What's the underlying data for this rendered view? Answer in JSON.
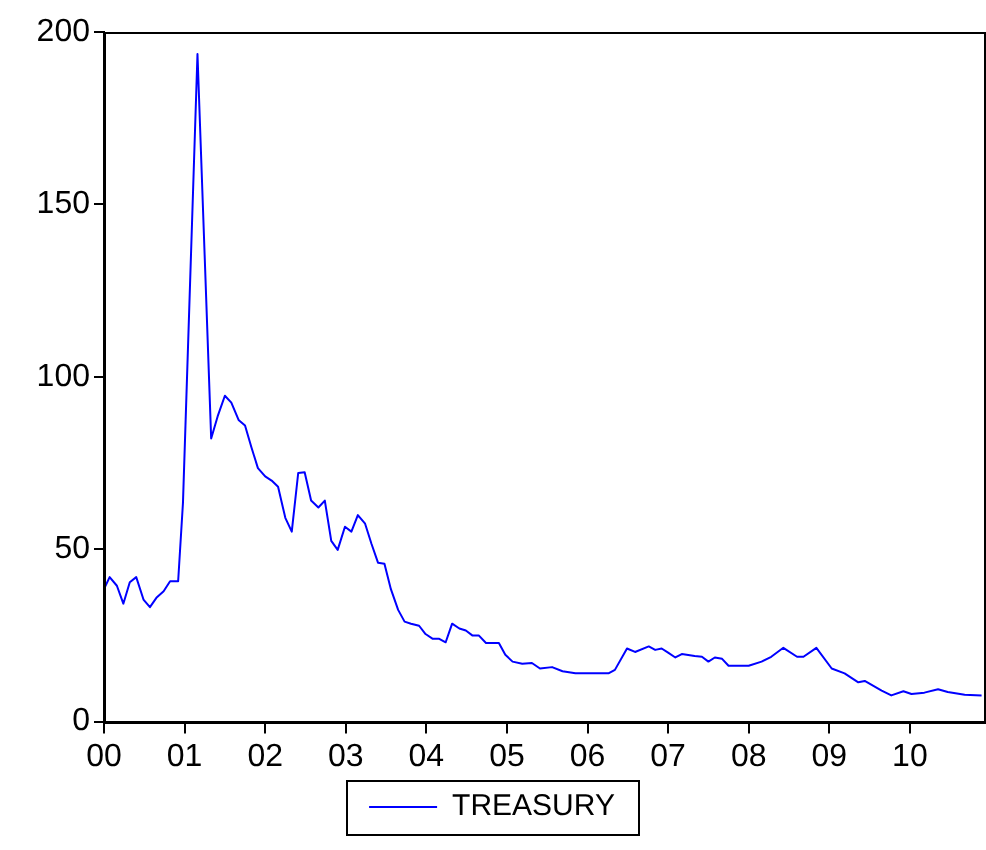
{
  "chart_data": {
    "type": "line",
    "legend": "bottom",
    "grid": false,
    "marker": "none",
    "line_style": "solid",
    "x": [
      2000.0,
      2000.07,
      2000.16,
      2000.24,
      2000.32,
      2000.4,
      2000.49,
      2000.57,
      2000.65,
      2000.74,
      2000.82,
      2000.92,
      2000.98,
      2001.16,
      2001.33,
      2001.41,
      2001.5,
      2001.58,
      2001.67,
      2001.75,
      2001.83,
      2001.91,
      2002.0,
      2002.08,
      2002.16,
      2002.25,
      2002.33,
      2002.41,
      2002.49,
      2002.57,
      2002.66,
      2002.74,
      2002.82,
      2002.9,
      2002.99,
      2003.07,
      2003.15,
      2003.24,
      2003.32,
      2003.4,
      2003.48,
      2003.56,
      2003.65,
      2003.73,
      2003.81,
      2003.91,
      2003.99,
      2004.08,
      2004.16,
      2004.24,
      2004.32,
      2004.41,
      2004.49,
      2004.57,
      2004.65,
      2004.74,
      2004.9,
      2004.98,
      2005.07,
      2005.19,
      2005.31,
      2005.41,
      2005.56,
      2005.69,
      2005.85,
      2006.26,
      2006.34,
      2006.49,
      2006.59,
      2006.76,
      2006.84,
      2006.92,
      2007.0,
      2007.09,
      2007.17,
      2007.33,
      2007.42,
      2007.5,
      2007.58,
      2007.67,
      2007.75,
      2008.0,
      2008.16,
      2008.28,
      2008.43,
      2008.6,
      2008.68,
      2008.84,
      2009.03,
      2009.19,
      2009.36,
      2009.44,
      2009.65,
      2009.77,
      2009.92,
      2010.02,
      2010.18,
      2010.35,
      2010.47,
      2010.68,
      2010.89
    ],
    "series": [
      {
        "name": "TREASURY",
        "color": "#0000ff",
        "values": [
          38.4,
          41.9,
          39.4,
          34.2,
          40.4,
          41.9,
          35.4,
          33.2,
          35.9,
          37.8,
          40.7,
          40.7,
          63.5,
          193.6,
          82.1,
          88.5,
          94.5,
          92.5,
          87.5,
          85.9,
          79.5,
          73.5,
          71.1,
          69.9,
          68.1,
          59.1,
          55.1,
          72.1,
          72.3,
          64.1,
          62.1,
          64.1,
          52.4,
          49.8,
          56.5,
          55.1,
          59.9,
          57.4,
          51.5,
          46.1,
          45.8,
          38.4,
          32.4,
          29.0,
          28.4,
          27.8,
          25.4,
          24.0,
          24.0,
          23.0,
          28.4,
          27.0,
          26.4,
          25.0,
          25.0,
          22.8,
          22.8,
          19.4,
          17.4,
          16.8,
          17.0,
          15.4,
          15.8,
          14.6,
          14.0,
          14.0,
          15.0,
          21.2,
          20.2,
          21.8,
          20.8,
          21.2,
          20.0,
          18.6,
          19.6,
          19.0,
          18.8,
          17.4,
          18.6,
          18.2,
          16.2,
          16.2,
          17.4,
          18.8,
          21.4,
          18.8,
          18.8,
          21.4,
          15.4,
          14.0,
          11.4,
          11.8,
          9.0,
          7.6,
          8.8,
          8.0,
          8.4,
          9.4,
          8.6,
          7.8,
          7.6
        ]
      }
    ],
    "xlim": [
      2000,
      2010.92
    ],
    "xticks": [
      {
        "value": 2000,
        "label": "00"
      },
      {
        "value": 2001,
        "label": "01"
      },
      {
        "value": 2002,
        "label": "02"
      },
      {
        "value": 2003,
        "label": "03"
      },
      {
        "value": 2004,
        "label": "04"
      },
      {
        "value": 2005,
        "label": "05"
      },
      {
        "value": 2006,
        "label": "06"
      },
      {
        "value": 2007,
        "label": "07"
      },
      {
        "value": 2008,
        "label": "08"
      },
      {
        "value": 2009,
        "label": "09"
      },
      {
        "value": 2010,
        "label": "10"
      }
    ],
    "ylim": [
      0,
      200
    ],
    "yticks": [
      0,
      50,
      100,
      150,
      200
    ]
  }
}
